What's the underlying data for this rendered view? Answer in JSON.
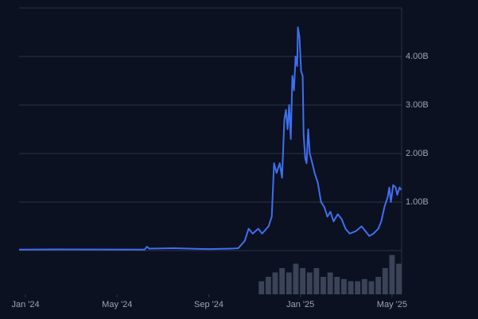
{
  "chart_data": {
    "type": "line",
    "x": [
      -0.28,
      1.3,
      5.2,
      5.3,
      5.4,
      6.5,
      8.0,
      9.0,
      9.29,
      9.57,
      9.74,
      9.92,
      10.16,
      10.33,
      10.61,
      10.75,
      10.85,
      10.96,
      11.1,
      11.2,
      11.3,
      11.37,
      11.44,
      11.51,
      11.58,
      11.65,
      11.72,
      11.79,
      11.86,
      11.89,
      11.96,
      12.03,
      12.1,
      12.14,
      12.21,
      12.27,
      12.34,
      12.41,
      12.52,
      12.62,
      12.76,
      12.9,
      13.04,
      13.18,
      13.31,
      13.45,
      13.63,
      13.8,
      13.97,
      14.15,
      14.42,
      14.67,
      14.84,
      15.01,
      15.19,
      15.4,
      15.53,
      15.67,
      15.81,
      15.88,
      15.95,
      16.05,
      16.16,
      16.23,
      16.33,
      16.4
    ],
    "series": [
      {
        "color": "#3f6ff0",
        "values": [
          0.02,
          0.025,
          0.02,
          0.08,
          0.04,
          0.05,
          0.03,
          0.04,
          0.05,
          0.2,
          0.45,
          0.35,
          0.45,
          0.35,
          0.5,
          0.7,
          1.8,
          1.6,
          1.8,
          1.5,
          2.7,
          2.9,
          2.5,
          3.0,
          2.3,
          3.6,
          3.3,
          4.0,
          3.8,
          4.6,
          4.4,
          3.7,
          3.6,
          2.4,
          1.9,
          1.8,
          2.5,
          2.0,
          1.8,
          1.6,
          1.4,
          1.0,
          0.9,
          0.7,
          0.8,
          0.6,
          0.75,
          0.65,
          0.45,
          0.35,
          0.4,
          0.5,
          0.4,
          0.3,
          0.35,
          0.45,
          0.6,
          0.9,
          1.1,
          1.3,
          1.0,
          1.35,
          1.3,
          1.15,
          1.3,
          1.25
        ]
      },
      {
        "color": "#3a4357",
        "axis": "y2",
        "x": [
          10.3,
          10.6,
          10.9,
          11.2,
          11.5,
          11.8,
          12.1,
          12.4,
          12.7,
          13.0,
          13.3,
          13.6,
          13.9,
          14.2,
          14.5,
          14.8,
          15.1,
          15.4,
          15.7,
          16.0,
          16.3
        ],
        "values": [
          0.3,
          0.4,
          0.5,
          0.6,
          0.5,
          0.7,
          0.6,
          0.5,
          0.6,
          0.4,
          0.5,
          0.4,
          0.35,
          0.3,
          0.3,
          0.35,
          0.3,
          0.4,
          0.6,
          0.9,
          0.7
        ]
      }
    ],
    "xlim": [
      -0.28,
      16.42
    ],
    "xticks": [
      {
        "value": 0,
        "label": "Jan '24"
      },
      {
        "value": 4,
        "label": "May '24"
      },
      {
        "value": 8,
        "label": "Sep '24"
      },
      {
        "value": 12,
        "label": "Jan '25"
      },
      {
        "value": 16,
        "label": "May '25"
      }
    ],
    "ylim": [
      0,
      5
    ],
    "yticks": [
      {
        "value": 1,
        "label": "1.00B"
      },
      {
        "value": 2,
        "label": "2.00B"
      },
      {
        "value": 3,
        "label": "3.00B"
      },
      {
        "value": 4,
        "label": "4.00B"
      }
    ],
    "y2lim": [
      0,
      1
    ],
    "grid": true
  }
}
